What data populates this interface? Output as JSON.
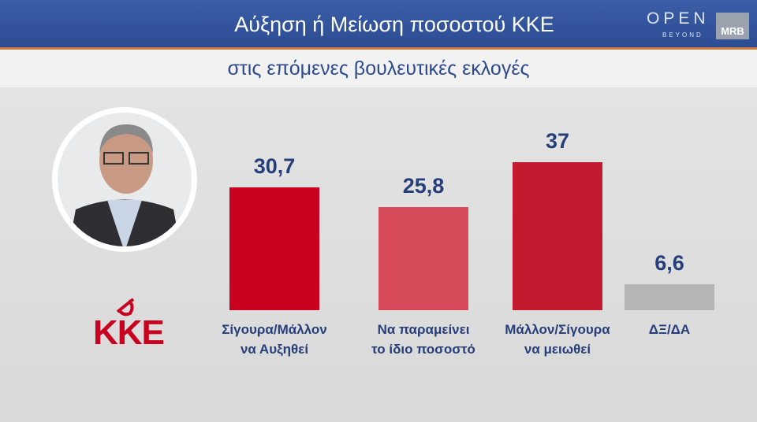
{
  "chart_data": {
    "type": "bar",
    "title": "Αύξηση ή Μείωση ποσοστού ΚΚΕ",
    "subtitle": "στις επόμενες βουλευτικές εκλογές",
    "categories": [
      "Σίγουρα/Μάλλον\nνα Αυξηθεί",
      "Να παραμείνει\nτο ίδιο ποσοστό",
      "Μάλλον/Σίγουρα\nνα μειωθεί",
      "ΔΞ/ΔΑ"
    ],
    "values": [
      30.7,
      25.8,
      37,
      6.6
    ],
    "value_labels": [
      "30,7",
      "25,8",
      "37",
      "6,6"
    ],
    "colors": [
      "#c9021f",
      "#d84b5b",
      "#c31a2f",
      "#b5b5b5"
    ]
  },
  "branding": {
    "channel": "OPEN",
    "channel_tag": "BEYOND",
    "pollster": "MRB",
    "party": "ΚΚΕ"
  }
}
